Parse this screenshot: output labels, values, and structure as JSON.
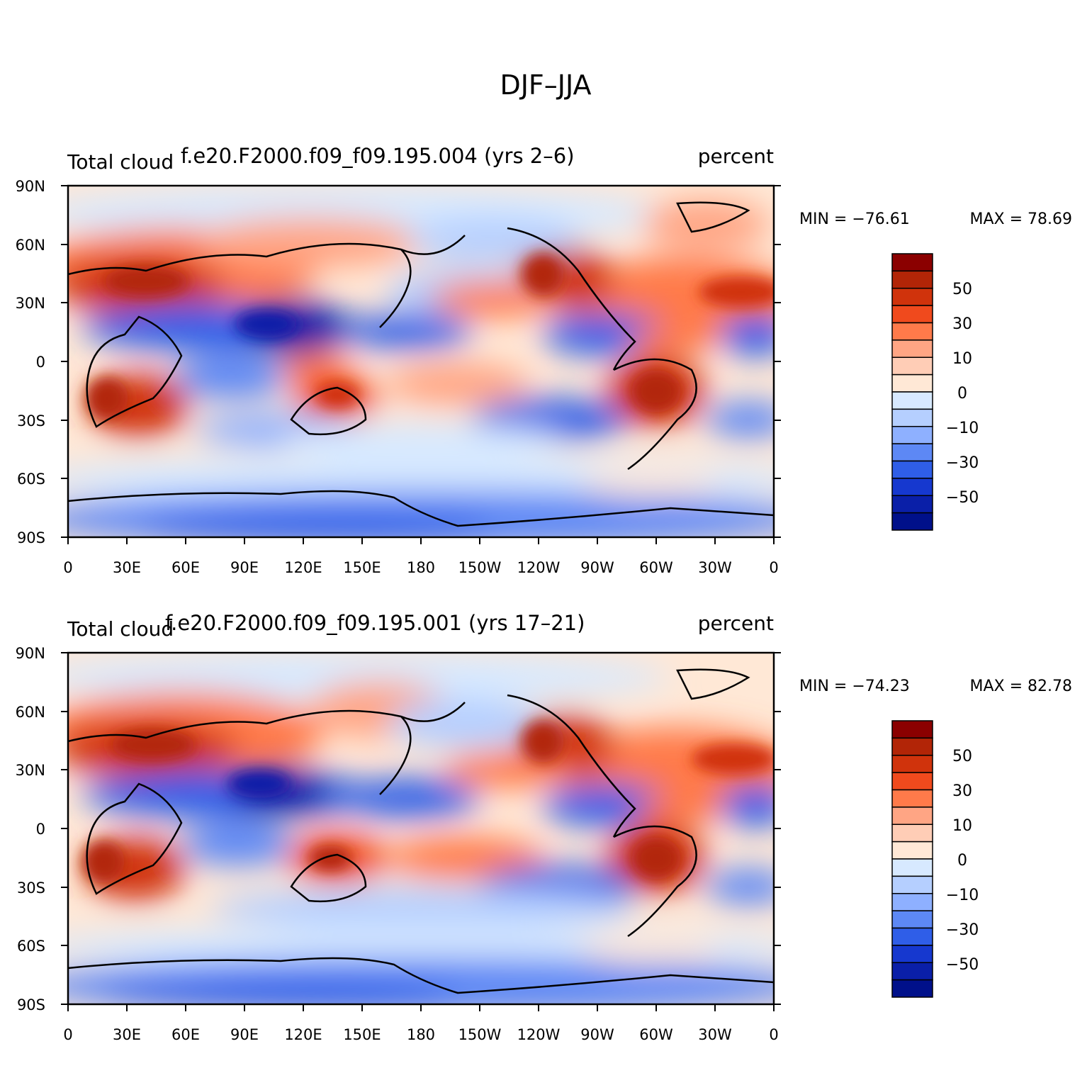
{
  "figure": {
    "title": "DJF–JJA"
  },
  "panels": [
    {
      "label_left": "Total cloud",
      "label_center": "f.e20.F2000.f09_f09.195.004 (yrs 2–6)",
      "label_right": "percent",
      "min_label": "MIN = −76.61",
      "max_label": "MAX =   78.69"
    },
    {
      "label_left": "Total cloud",
      "label_center": "f.e20.F2000.f09_f09.195.001 (yrs 17–21)",
      "label_right": "percent",
      "min_label": "MIN = −74.23",
      "max_label": "MAX =   82.78"
    }
  ],
  "axes": {
    "lat_ticks": [
      "90N",
      "60N",
      "30N",
      "0",
      "30S",
      "60S",
      "90S"
    ],
    "lon_ticks": [
      "0",
      "30E",
      "60E",
      "90E",
      "120E",
      "150E",
      "180",
      "150W",
      "120W",
      "90W",
      "60W",
      "30W",
      "0"
    ]
  },
  "colorbar": {
    "labels": [
      "50",
      "30",
      "10",
      "0",
      "−10",
      "−30",
      "−50"
    ],
    "colors": [
      "#8b0000",
      "#b22507",
      "#d0330c",
      "#f04a1d",
      "#ff7a4a",
      "#ffa584",
      "#ffcdb6",
      "#ffe8d6",
      "#d7e9ff",
      "#b5cfff",
      "#8eb0ff",
      "#5d88f5",
      "#2f5ee8",
      "#1638cf",
      "#0a1fa8",
      "#00108a"
    ]
  },
  "map_data": {
    "description": "Total cloud difference, DJF minus JJA, percent",
    "lon_range": [
      0,
      360
    ],
    "lat_range": [
      -90,
      90
    ]
  }
}
